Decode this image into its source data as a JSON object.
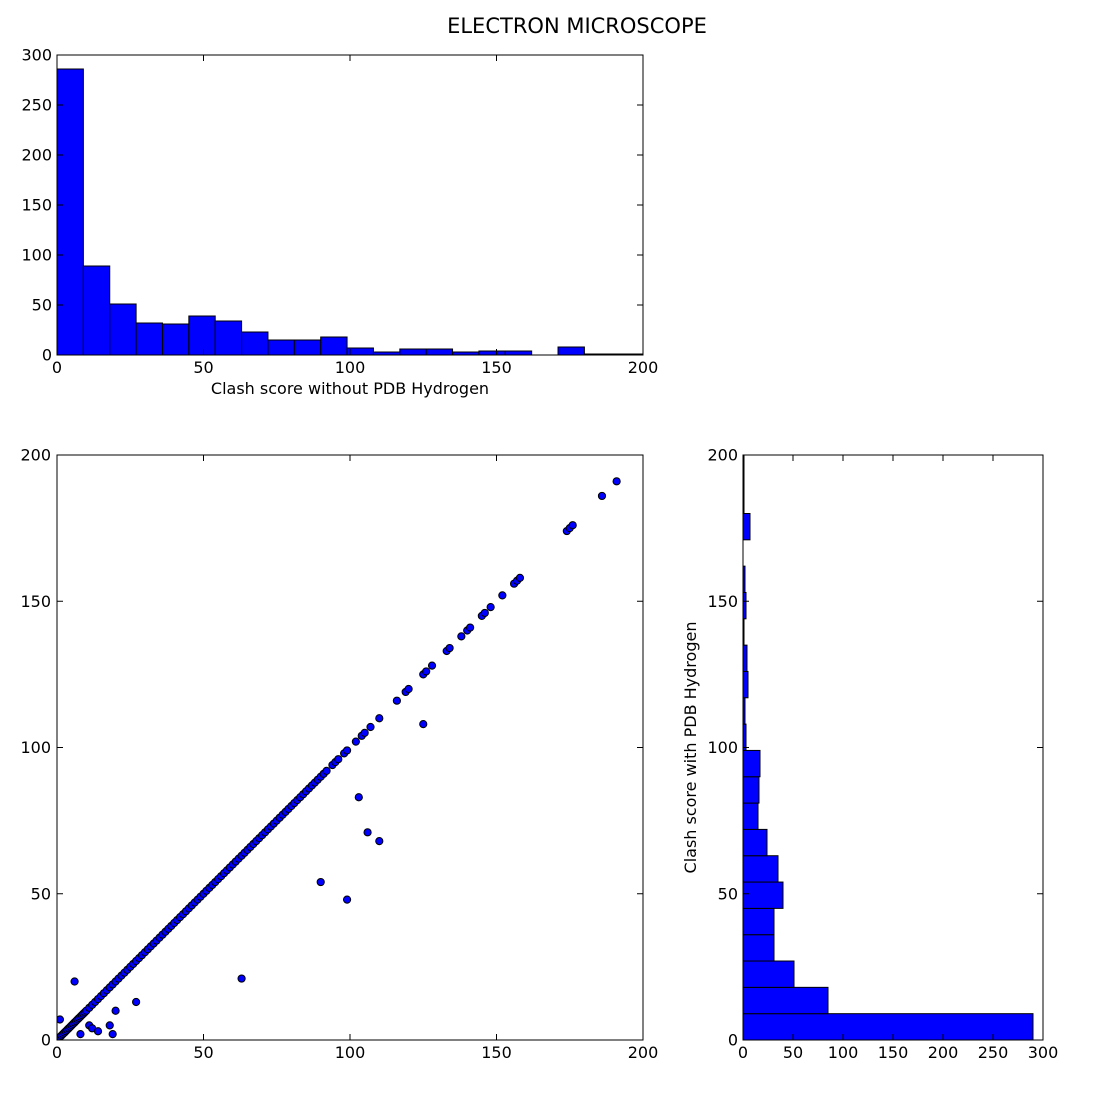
{
  "chart_data": {
    "title": "ELECTRON MICROSCOPE",
    "colors": {
      "bar": "#0000ff",
      "point": "#0000ff",
      "edge": "#000000"
    },
    "panels": [
      {
        "id": "hist_top",
        "type": "bar",
        "orientation": "vertical",
        "xlabel": "Clash score without PDB Hydrogen",
        "ylabel": "",
        "xlim": [
          0,
          200
        ],
        "ylim": [
          0,
          300
        ],
        "xticks": [
          "0",
          "50",
          "100",
          "150",
          "200"
        ],
        "yticks": [
          "0",
          "50",
          "100",
          "150",
          "200",
          "250",
          "300"
        ],
        "bin_edges": [
          0,
          9,
          18,
          27,
          36,
          45,
          54,
          63,
          72,
          81,
          90,
          99,
          108,
          117,
          126,
          135,
          144,
          153,
          162,
          171,
          180,
          200
        ],
        "counts": [
          286,
          89,
          51,
          32,
          31,
          39,
          34,
          23,
          15,
          15,
          18,
          7,
          3,
          6,
          6,
          3,
          4,
          4,
          0,
          8,
          1
        ]
      },
      {
        "id": "scatter",
        "type": "scatter",
        "xlabel": "",
        "ylabel": "",
        "xlim": [
          0,
          200
        ],
        "ylim": [
          0,
          200
        ],
        "xticks": [
          "0",
          "50",
          "100",
          "150",
          "200"
        ],
        "yticks": [
          "0",
          "50",
          "100",
          "150",
          "200"
        ],
        "points": [
          [
            0.5,
            0.5
          ],
          [
            1,
            1
          ],
          [
            1.5,
            1.5
          ],
          [
            2,
            2
          ],
          [
            2.5,
            2.5
          ],
          [
            3,
            3
          ],
          [
            3.5,
            3.5
          ],
          [
            4,
            4
          ],
          [
            4.5,
            4.5
          ],
          [
            5,
            5
          ],
          [
            5.5,
            5.5
          ],
          [
            6,
            6
          ],
          [
            6.5,
            6.5
          ],
          [
            7,
            7
          ],
          [
            7.5,
            7.5
          ],
          [
            8,
            8
          ],
          [
            8.5,
            8.5
          ],
          [
            9,
            9
          ],
          [
            9.5,
            9.5
          ],
          [
            10,
            10
          ],
          [
            11,
            11
          ],
          [
            12,
            12
          ],
          [
            13,
            13
          ],
          [
            14,
            14
          ],
          [
            15,
            15
          ],
          [
            16,
            16
          ],
          [
            17,
            17
          ],
          [
            18,
            18
          ],
          [
            19,
            19
          ],
          [
            20,
            20
          ],
          [
            21,
            21
          ],
          [
            22,
            22
          ],
          [
            23,
            23
          ],
          [
            24,
            24
          ],
          [
            25,
            25
          ],
          [
            26,
            26
          ],
          [
            27,
            27
          ],
          [
            28,
            28
          ],
          [
            29,
            29
          ],
          [
            30,
            30
          ],
          [
            31,
            31
          ],
          [
            32,
            32
          ],
          [
            33,
            33
          ],
          [
            34,
            34
          ],
          [
            35,
            35
          ],
          [
            36,
            36
          ],
          [
            37,
            37
          ],
          [
            38,
            38
          ],
          [
            39,
            39
          ],
          [
            40,
            40
          ],
          [
            41,
            41
          ],
          [
            42,
            42
          ],
          [
            43,
            43
          ],
          [
            44,
            44
          ],
          [
            45,
            45
          ],
          [
            46,
            46
          ],
          [
            47,
            47
          ],
          [
            48,
            48
          ],
          [
            49,
            49
          ],
          [
            50,
            50
          ],
          [
            51,
            51
          ],
          [
            52,
            52
          ],
          [
            53,
            53
          ],
          [
            54,
            54
          ],
          [
            55,
            55
          ],
          [
            56,
            56
          ],
          [
            57,
            57
          ],
          [
            58,
            58
          ],
          [
            59,
            59
          ],
          [
            60,
            60
          ],
          [
            61,
            61
          ],
          [
            62,
            62
          ],
          [
            63,
            63
          ],
          [
            64,
            64
          ],
          [
            65,
            65
          ],
          [
            66,
            66
          ],
          [
            67,
            67
          ],
          [
            68,
            68
          ],
          [
            69,
            69
          ],
          [
            70,
            70
          ],
          [
            71,
            71
          ],
          [
            72,
            72
          ],
          [
            73,
            73
          ],
          [
            74,
            74
          ],
          [
            75,
            75
          ],
          [
            76,
            76
          ],
          [
            77,
            77
          ],
          [
            78,
            78
          ],
          [
            79,
            79
          ],
          [
            80,
            80
          ],
          [
            81,
            81
          ],
          [
            82,
            82
          ],
          [
            83,
            83
          ],
          [
            84,
            84
          ],
          [
            85,
            85
          ],
          [
            86,
            86
          ],
          [
            87,
            87
          ],
          [
            88,
            88
          ],
          [
            89,
            89
          ],
          [
            90,
            90
          ],
          [
            91,
            91
          ],
          [
            92,
            92
          ],
          [
            94,
            94
          ],
          [
            95,
            95
          ],
          [
            96,
            96
          ],
          [
            98,
            98
          ],
          [
            99,
            99
          ],
          [
            102,
            102
          ],
          [
            104,
            104
          ],
          [
            105,
            105
          ],
          [
            107,
            107
          ],
          [
            110,
            110
          ],
          [
            116,
            116
          ],
          [
            119,
            119
          ],
          [
            120,
            120
          ],
          [
            125,
            125
          ],
          [
            126,
            126
          ],
          [
            128,
            128
          ],
          [
            133,
            133
          ],
          [
            134,
            134
          ],
          [
            138,
            138
          ],
          [
            140,
            140
          ],
          [
            141,
            141
          ],
          [
            145,
            145
          ],
          [
            146,
            146
          ],
          [
            148,
            148
          ],
          [
            152,
            152
          ],
          [
            156,
            156
          ],
          [
            157,
            157
          ],
          [
            158,
            158
          ],
          [
            174,
            174
          ],
          [
            175,
            175
          ],
          [
            176,
            176
          ],
          [
            186,
            186
          ],
          [
            191,
            191
          ],
          [
            1,
            7
          ],
          [
            6,
            20
          ],
          [
            8,
            2
          ],
          [
            11,
            5
          ],
          [
            12,
            4
          ],
          [
            14,
            3
          ],
          [
            18,
            5
          ],
          [
            19,
            2
          ],
          [
            20,
            10
          ],
          [
            27,
            13
          ],
          [
            63,
            21
          ],
          [
            90,
            54
          ],
          [
            99,
            48
          ],
          [
            103,
            83
          ],
          [
            106,
            71
          ],
          [
            110,
            68
          ],
          [
            125,
            108
          ]
        ]
      },
      {
        "id": "hist_right",
        "type": "bar",
        "orientation": "horizontal",
        "xlabel": "",
        "ylabel": "Clash score with PDB Hydrogen",
        "xlim": [
          0,
          300
        ],
        "ylim": [
          0,
          200
        ],
        "xticks": [
          "0",
          "50",
          "100",
          "150",
          "200",
          "250",
          "300"
        ],
        "yticks": [
          "0",
          "50",
          "100",
          "150",
          "200"
        ],
        "bin_edges": [
          0,
          9,
          18,
          27,
          36,
          45,
          54,
          63,
          72,
          81,
          90,
          99,
          108,
          117,
          126,
          135,
          144,
          153,
          162,
          171,
          180,
          189,
          200
        ],
        "counts": [
          290,
          85,
          51,
          31,
          31,
          40,
          35,
          24,
          15,
          16,
          17,
          3,
          2,
          5,
          4,
          1,
          3,
          2,
          0,
          7,
          1,
          1
        ]
      }
    ]
  }
}
